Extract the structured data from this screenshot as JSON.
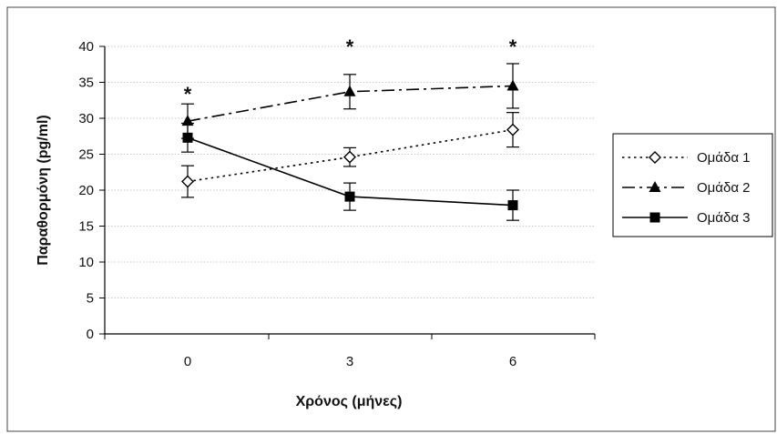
{
  "chart_data": {
    "type": "line",
    "title": "",
    "xlabel": "Χρόνος (μήνες)",
    "ylabel": "Παραθορμόνη (pg/ml)",
    "x": [
      0,
      3,
      6
    ],
    "x_tick_labels": [
      "0",
      "3",
      "6"
    ],
    "ylim": [
      0,
      40
    ],
    "y_ticks": [
      0,
      5,
      10,
      15,
      20,
      25,
      30,
      35,
      40
    ],
    "y_tick_labels": [
      "0",
      "5",
      "10",
      "15",
      "20",
      "25",
      "30",
      "35",
      "40"
    ],
    "grid": true,
    "legend_position": "right",
    "series": [
      {
        "name": "Ομάδα 1",
        "marker": "diamond-open",
        "line_style": "dotted",
        "values": [
          21.2,
          24.6,
          28.4
        ],
        "error": [
          2.2,
          1.3,
          2.4
        ]
      },
      {
        "name": "Ομάδα 2",
        "marker": "triangle-filled",
        "line_style": "dash-dot",
        "values": [
          29.6,
          33.7,
          34.5
        ],
        "error": [
          2.4,
          2.4,
          3.1
        ]
      },
      {
        "name": "Ομάδα 3",
        "marker": "square-filled",
        "line_style": "solid",
        "values": [
          27.3,
          19.1,
          17.9
        ],
        "error": [
          2.0,
          1.9,
          2.1
        ]
      }
    ],
    "annotations": [
      {
        "text": "*",
        "x": 0
      },
      {
        "text": "*",
        "x": 3
      },
      {
        "text": "*",
        "x": 6
      }
    ]
  }
}
